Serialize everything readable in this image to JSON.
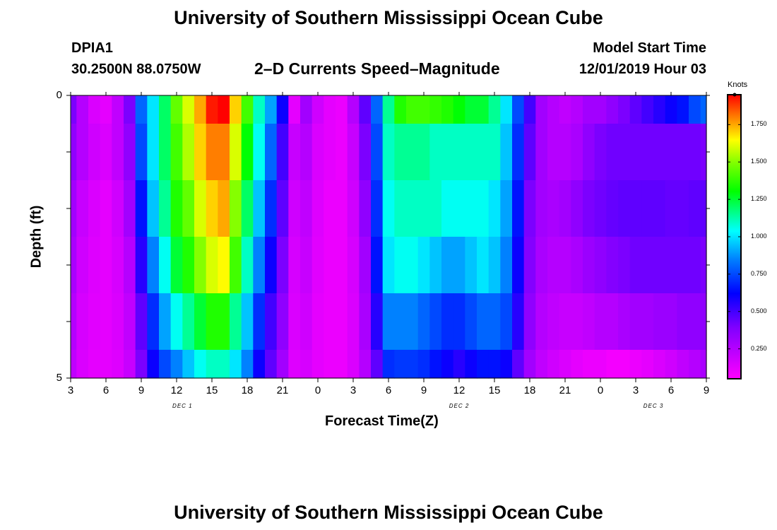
{
  "page": {
    "title_top": "University of Southern Mississippi Ocean Cube",
    "title_bottom": "University of Southern Mississippi Ocean Cube",
    "station": "DPIA1",
    "coordinates": "30.2500N 88.0750W",
    "plot_title": "2–D Currents Speed–Magnitude",
    "model_start_label": "Model Start Time",
    "model_start_value": "12/01/2019 Hour 03"
  },
  "chart_data": {
    "type": "heatmap",
    "title": "2–D Currents Speed–Magnitude",
    "xlabel": "Forecast Time(Z)",
    "ylabel": "Depth (ft)",
    "x_range_hours": [
      0,
      54
    ],
    "x_ticks": [
      {
        "h": 0,
        "label": "3"
      },
      {
        "h": 3,
        "label": "6"
      },
      {
        "h": 6,
        "label": "9"
      },
      {
        "h": 9,
        "label": "12"
      },
      {
        "h": 12,
        "label": "15"
      },
      {
        "h": 15,
        "label": "18"
      },
      {
        "h": 18,
        "label": "21"
      },
      {
        "h": 21,
        "label": "0"
      },
      {
        "h": 24,
        "label": "3"
      },
      {
        "h": 27,
        "label": "6"
      },
      {
        "h": 30,
        "label": "9"
      },
      {
        "h": 33,
        "label": "12"
      },
      {
        "h": 36,
        "label": "15"
      },
      {
        "h": 39,
        "label": "18"
      },
      {
        "h": 42,
        "label": "21"
      },
      {
        "h": 45,
        "label": "0"
      },
      {
        "h": 48,
        "label": "3"
      },
      {
        "h": 51,
        "label": "6"
      },
      {
        "h": 54,
        "label": "9"
      }
    ],
    "day_labels": [
      {
        "h": 9.5,
        "label": "DEC 1"
      },
      {
        "h": 33,
        "label": "DEC 2"
      },
      {
        "h": 49.5,
        "label": "DEC 3"
      }
    ],
    "y_range": [
      0,
      5
    ],
    "y_tick_labels": [
      {
        "v": 0,
        "label": "0"
      },
      {
        "v": 5,
        "label": "5"
      }
    ],
    "y_minor_ticks": [
      1,
      2,
      3,
      4
    ],
    "colorbar": {
      "label": "Knots",
      "min": 0.05,
      "max": 1.95,
      "ticks": [
        {
          "v": 0.25,
          "label": "0.250"
        },
        {
          "v": 0.5,
          "label": "0.500"
        },
        {
          "v": 0.75,
          "label": "0.750"
        },
        {
          "v": 1.0,
          "label": "1.000"
        },
        {
          "v": 1.25,
          "label": "1.250"
        },
        {
          "v": 1.5,
          "label": "1.500"
        },
        {
          "v": 1.75,
          "label": "1.750"
        }
      ]
    },
    "depth_layers": [
      0.0,
      0.5,
      1.5,
      2.5,
      3.5,
      4.5
    ],
    "layer_edges": [
      0,
      0.5,
      1.5,
      2.5,
      3.5,
      4.5,
      5
    ],
    "hours": [
      0,
      1,
      2,
      3,
      4,
      5,
      6,
      7,
      8,
      9,
      10,
      11,
      12,
      13,
      14,
      15,
      16,
      17,
      18,
      19,
      20,
      21,
      22,
      23,
      24,
      25,
      26,
      27,
      28,
      29,
      30,
      31,
      32,
      33,
      34,
      35,
      36,
      37,
      38,
      39,
      40,
      41,
      42,
      43,
      44,
      45,
      46,
      47,
      48,
      49,
      50,
      51,
      52,
      53,
      54
    ],
    "speed_knots": [
      [
        0.4,
        0.25,
        0.15,
        0.12,
        0.22,
        0.4,
        0.8,
        1.0,
        1.2,
        1.45,
        1.6,
        1.75,
        1.92,
        1.95,
        1.7,
        1.4,
        1.1,
        0.9,
        0.6,
        0.12,
        0.3,
        0.18,
        0.12,
        0.1,
        0.25,
        0.45,
        0.8,
        1.15,
        1.35,
        1.4,
        1.4,
        1.38,
        1.35,
        1.3,
        1.25,
        1.25,
        1.15,
        1.0,
        0.75,
        0.5,
        0.3,
        0.25,
        0.22,
        0.25,
        0.3,
        0.3,
        0.35,
        0.4,
        0.45,
        0.5,
        0.55,
        0.6,
        0.65,
        0.75,
        0.8
      ],
      [
        0.35,
        0.25,
        0.18,
        0.15,
        0.22,
        0.35,
        0.75,
        1.0,
        1.2,
        1.4,
        1.55,
        1.7,
        1.8,
        1.8,
        1.6,
        1.3,
        1.05,
        0.8,
        0.5,
        0.2,
        0.25,
        0.15,
        0.12,
        0.1,
        0.2,
        0.4,
        0.75,
        1.1,
        1.15,
        1.15,
        1.15,
        1.1,
        1.1,
        1.1,
        1.1,
        1.1,
        1.1,
        0.95,
        0.7,
        0.45,
        0.3,
        0.25,
        0.25,
        0.28,
        0.35,
        0.4,
        0.42,
        0.42,
        0.42,
        0.42,
        0.42,
        0.42,
        0.42,
        0.42,
        0.4
      ],
      [
        0.3,
        0.2,
        0.15,
        0.12,
        0.18,
        0.3,
        0.65,
        0.95,
        1.15,
        1.35,
        1.45,
        1.6,
        1.7,
        1.75,
        1.5,
        1.2,
        0.95,
        0.7,
        0.45,
        0.18,
        0.22,
        0.14,
        0.1,
        0.1,
        0.18,
        0.35,
        0.7,
        1.05,
        1.1,
        1.1,
        1.1,
        1.1,
        1.05,
        1.05,
        1.05,
        1.05,
        1.0,
        0.9,
        0.65,
        0.4,
        0.3,
        0.28,
        0.3,
        0.35,
        0.4,
        0.42,
        0.44,
        0.45,
        0.45,
        0.45,
        0.45,
        0.44,
        0.44,
        0.45,
        0.45
      ],
      [
        0.28,
        0.18,
        0.14,
        0.12,
        0.16,
        0.25,
        0.55,
        0.85,
        1.05,
        1.25,
        1.35,
        1.5,
        1.6,
        1.65,
        1.4,
        1.1,
        0.85,
        0.6,
        0.4,
        0.16,
        0.2,
        0.13,
        0.1,
        0.1,
        0.16,
        0.3,
        0.65,
        1.0,
        1.05,
        1.05,
        1.0,
        0.95,
        0.9,
        0.9,
        0.95,
        1.0,
        0.95,
        0.85,
        0.6,
        0.38,
        0.28,
        0.25,
        0.25,
        0.28,
        0.32,
        0.35,
        0.38,
        0.4,
        0.42,
        0.42,
        0.42,
        0.42,
        0.42,
        0.42,
        0.4
      ],
      [
        0.25,
        0.16,
        0.13,
        0.12,
        0.15,
        0.22,
        0.45,
        0.7,
        0.9,
        1.05,
        1.15,
        1.25,
        1.35,
        1.35,
        1.15,
        0.95,
        0.7,
        0.5,
        0.35,
        0.15,
        0.18,
        0.12,
        0.1,
        0.1,
        0.15,
        0.28,
        0.55,
        0.85,
        0.85,
        0.85,
        0.8,
        0.75,
        0.7,
        0.7,
        0.75,
        0.8,
        0.8,
        0.75,
        0.55,
        0.35,
        0.25,
        0.22,
        0.2,
        0.2,
        0.22,
        0.25,
        0.25,
        0.28,
        0.3,
        0.3,
        0.32,
        0.32,
        0.35,
        0.35,
        0.35
      ],
      [
        0.22,
        0.15,
        0.12,
        0.12,
        0.14,
        0.2,
        0.4,
        0.6,
        0.75,
        0.85,
        0.95,
        1.05,
        1.1,
        1.1,
        1.0,
        0.85,
        0.6,
        0.45,
        0.3,
        0.14,
        0.16,
        0.12,
        0.1,
        0.1,
        0.15,
        0.25,
        0.45,
        0.7,
        0.72,
        0.72,
        0.7,
        0.65,
        0.6,
        0.55,
        0.6,
        0.65,
        0.65,
        0.6,
        0.45,
        0.3,
        0.22,
        0.18,
        0.15,
        0.12,
        0.1,
        0.1,
        0.08,
        0.08,
        0.1,
        0.12,
        0.15,
        0.18,
        0.22,
        0.25,
        0.28
      ]
    ]
  }
}
